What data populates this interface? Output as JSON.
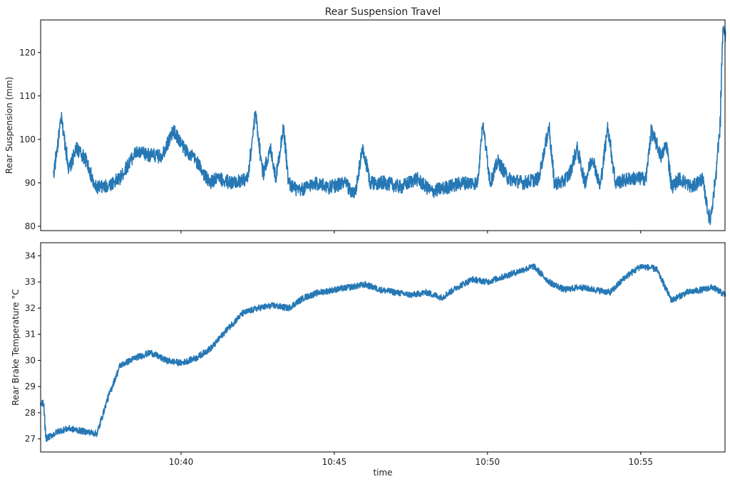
{
  "chart_data": [
    {
      "type": "line",
      "title": "Rear Suspension Travel",
      "xlabel": "",
      "ylabel": "Rear Suspension (mm)",
      "ylim": [
        79,
        127.5
      ],
      "yticks": [
        80,
        90,
        100,
        110,
        120
      ],
      "grid": false,
      "color": "#2678b5",
      "series": [
        {
          "x": [
            "10:35:50",
            "10:36:05",
            "10:36:20",
            "10:36:35",
            "10:36:55",
            "10:37:10",
            "10:37:30",
            "10:38:00",
            "10:38:30",
            "10:38:55",
            "10:39:20",
            "10:39:45",
            "10:40:05",
            "10:40:30",
            "10:40:55",
            "10:41:10",
            "10:41:40",
            "10:42:10",
            "10:42:25",
            "10:42:40",
            "10:42:55",
            "10:43:05",
            "10:43:20",
            "10:43:30",
            "10:43:50",
            "10:44:20",
            "10:44:50",
            "10:45:20",
            "10:45:40",
            "10:45:55",
            "10:46:10",
            "10:46:40",
            "10:47:10",
            "10:47:40",
            "10:48:10",
            "10:48:40",
            "10:49:10",
            "10:49:40",
            "10:49:50",
            "10:50:05",
            "10:50:20",
            "10:50:40",
            "10:51:10",
            "10:51:40",
            "10:52:00",
            "10:52:10",
            "10:52:25",
            "10:52:40",
            "10:52:55",
            "10:53:10",
            "10:53:25",
            "10:53:40",
            "10:53:55",
            "10:54:10",
            "10:54:40",
            "10:55:10",
            "10:55:20",
            "10:55:40",
            "10:55:50",
            "10:56:00",
            "10:56:15",
            "10:56:40",
            "10:57:00",
            "10:57:15",
            "10:57:25",
            "10:57:35",
            "10:57:40",
            "10:57:50"
          ],
          "y": [
            92,
            105,
            93,
            98,
            95,
            89,
            89,
            91,
            97,
            96.5,
            96,
            102,
            98,
            95,
            90,
            91,
            90,
            91,
            106,
            92,
            98,
            91,
            103,
            90,
            88,
            90,
            89,
            90,
            87,
            98,
            90,
            90,
            89,
            91,
            88,
            89,
            90,
            90,
            104,
            90,
            95,
            91,
            90,
            91,
            103,
            90,
            90,
            92,
            98,
            90,
            96,
            89,
            103,
            90,
            91,
            91,
            102,
            96,
            99,
            89,
            91,
            89,
            91,
            81,
            90,
            103,
            125,
            123
          ]
        }
      ]
    },
    {
      "type": "line",
      "title": "",
      "xlabel": "time",
      "ylabel": "Rear Brake Temperature °C",
      "ylim": [
        26.5,
        34.5
      ],
      "yticks": [
        27,
        28,
        29,
        30,
        31,
        32,
        33,
        34
      ],
      "xticks": [
        "10:40",
        "10:45",
        "10:50",
        "10:55"
      ],
      "xlim": [
        "10:35:25",
        "10:57:45"
      ],
      "grid": false,
      "color": "#2678b5",
      "series": [
        {
          "x": [
            "10:35:25",
            "10:35:30",
            "10:35:35",
            "10:36:00",
            "10:36:20",
            "10:36:45",
            "10:37:15",
            "10:37:35",
            "10:38:00",
            "10:38:30",
            "10:39:00",
            "10:39:30",
            "10:40:00",
            "10:40:30",
            "10:41:00",
            "10:41:30",
            "10:42:00",
            "10:42:30",
            "10:43:00",
            "10:43:30",
            "10:44:00",
            "10:44:30",
            "10:45:00",
            "10:45:30",
            "10:46:00",
            "10:46:30",
            "10:47:00",
            "10:47:30",
            "10:48:00",
            "10:48:30",
            "10:49:00",
            "10:49:30",
            "10:50:00",
            "10:50:30",
            "10:51:00",
            "10:51:30",
            "10:52:00",
            "10:52:30",
            "10:53:00",
            "10:53:30",
            "10:54:00",
            "10:54:30",
            "10:55:00",
            "10:55:30",
            "10:55:45",
            "10:56:00",
            "10:56:30",
            "10:57:00",
            "10:57:20",
            "10:57:45"
          ],
          "y": [
            28.3,
            28.4,
            27.0,
            27.3,
            27.4,
            27.3,
            27.2,
            28.5,
            29.8,
            30.1,
            30.3,
            30.0,
            29.9,
            30.1,
            30.5,
            31.2,
            31.8,
            32.0,
            32.1,
            32.0,
            32.4,
            32.6,
            32.7,
            32.8,
            32.9,
            32.7,
            32.6,
            32.5,
            32.6,
            32.4,
            32.8,
            33.1,
            33.0,
            33.2,
            33.4,
            33.6,
            33.0,
            32.7,
            32.8,
            32.7,
            32.6,
            33.2,
            33.6,
            33.5,
            32.9,
            32.3,
            32.6,
            32.7,
            32.8,
            32.5
          ]
        }
      ]
    }
  ]
}
